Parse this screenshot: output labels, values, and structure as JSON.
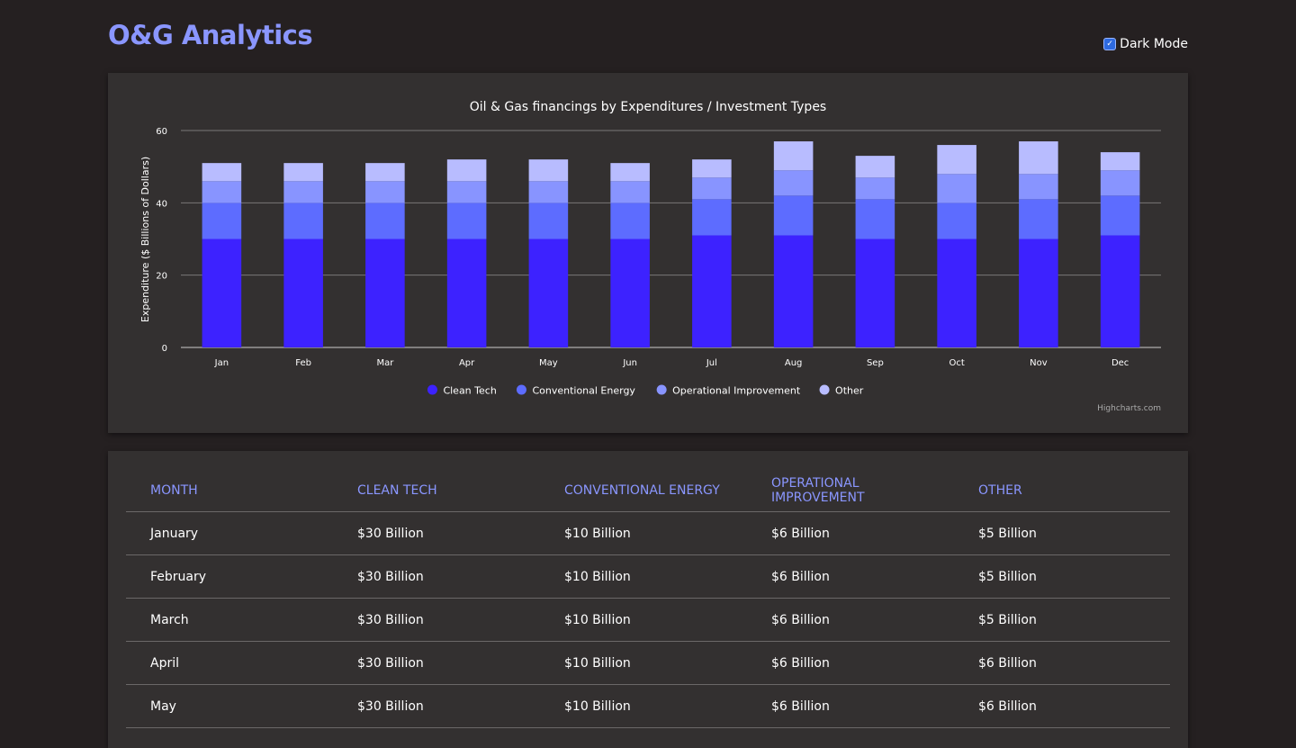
{
  "app": {
    "logo": "O&G Analytics",
    "dark_mode_label": "Dark Mode",
    "dark_mode_checked": true
  },
  "chart_data": {
    "type": "bar",
    "stacked": true,
    "title": "Oil & Gas financings by Expenditures / Investment Types",
    "xlabel": "",
    "ylabel": "Expenditure ($ Billions of Dollars)",
    "ylim": [
      0,
      60
    ],
    "yticks": [
      0,
      20,
      40,
      60
    ],
    "categories": [
      "Jan",
      "Feb",
      "Mar",
      "Apr",
      "May",
      "Jun",
      "Jul",
      "Aug",
      "Sep",
      "Oct",
      "Nov",
      "Dec"
    ],
    "series": [
      {
        "name": "Clean Tech",
        "color": "#3d22ff",
        "values": [
          30,
          30,
          30,
          30,
          30,
          30,
          31,
          31,
          30,
          30,
          30,
          31
        ]
      },
      {
        "name": "Conventional Energy",
        "color": "#5d6cff",
        "values": [
          10,
          10,
          10,
          10,
          10,
          10,
          10,
          11,
          11,
          10,
          11,
          11
        ]
      },
      {
        "name": "Operational Improvement",
        "color": "#8894ff",
        "values": [
          6,
          6,
          6,
          6,
          6,
          6,
          6,
          7,
          6,
          8,
          7,
          7
        ]
      },
      {
        "name": "Other",
        "color": "#b8bcff",
        "values": [
          5,
          5,
          5,
          6,
          6,
          5,
          5,
          8,
          6,
          8,
          9,
          5
        ]
      }
    ],
    "legend_position": "bottom-center",
    "credits": "Highcharts.com"
  },
  "table": {
    "headers": [
      "MONTH",
      "CLEAN TECH",
      "CONVENTIONAL ENERGY",
      "OPERATIONAL IMPROVEMENT",
      "OTHER"
    ],
    "rows": [
      [
        "January",
        "$30 Billion",
        "$10 Billion",
        "$6 Billion",
        "$5 Billion"
      ],
      [
        "February",
        "$30 Billion",
        "$10 Billion",
        "$6 Billion",
        "$5 Billion"
      ],
      [
        "March",
        "$30 Billion",
        "$10 Billion",
        "$6 Billion",
        "$5 Billion"
      ],
      [
        "April",
        "$30 Billion",
        "$10 Billion",
        "$6 Billion",
        "$6 Billion"
      ],
      [
        "May",
        "$30 Billion",
        "$10 Billion",
        "$6 Billion",
        "$6 Billion"
      ]
    ]
  }
}
